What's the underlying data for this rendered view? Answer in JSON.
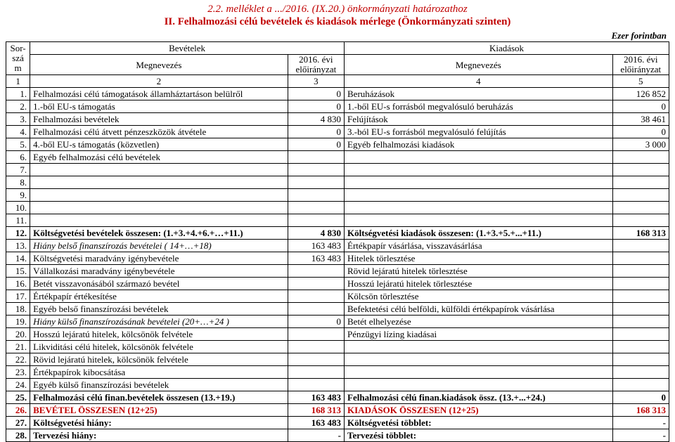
{
  "header": {
    "line1": "2.2. melléklet a .../2016. (IX.20.) önkormányzati határozathoz",
    "line2": "II. Felhalmozási célú bevételek és kiadások mérlege (Önkormányzati szinten)",
    "unit": "Ezer forintban"
  },
  "thead": {
    "sor": "Sor-szá m",
    "bev": "Bevételek",
    "kiad": "Kiadások",
    "megn": "Megnevezés",
    "evi": "2016. évi előirányzat",
    "c1": "1",
    "c2": "2",
    "c3": "3",
    "c4": "4",
    "c5": "5"
  },
  "rows": [
    {
      "n": "1.",
      "m1": "Felhalmozási célú támogatások államháztartáson belülről",
      "v1": "0",
      "m2": "Beruházások",
      "v2": "126 852"
    },
    {
      "n": "2.",
      "m1": "1.-ből EU-s támogatás",
      "v1": "0",
      "m2": "1.-ből EU-s forrásból megvalósuló beruházás",
      "v2": "0"
    },
    {
      "n": "3.",
      "m1": "Felhalmozási bevételek",
      "v1": "4 830",
      "m2": "Felújítások",
      "v2": "38 461"
    },
    {
      "n": "4.",
      "m1": "Felhalmozási célú átvett pénzeszközök átvétele",
      "v1": "0",
      "m2": "3.-ból EU-s forrásból megvalósuló felújítás",
      "v2": "0"
    },
    {
      "n": "5.",
      "m1": "4.-ből EU-s támogatás (közvetlen)",
      "v1": "0",
      "m2": "Egyéb felhalmozási kiadások",
      "v2": "3 000"
    },
    {
      "n": "6.",
      "m1": "Egyéb felhalmozási célú bevételek",
      "v1": "",
      "m2": "",
      "v2": ""
    },
    {
      "n": "7.",
      "m1": "",
      "v1": "",
      "m2": "",
      "v2": ""
    },
    {
      "n": "8.",
      "m1": "",
      "v1": "",
      "m2": "",
      "v2": ""
    },
    {
      "n": "9.",
      "m1": "",
      "v1": "",
      "m2": "",
      "v2": ""
    },
    {
      "n": "10.",
      "m1": "",
      "v1": "",
      "m2": "",
      "v2": ""
    },
    {
      "n": "11.",
      "m1": "",
      "v1": "",
      "m2": "",
      "v2": ""
    },
    {
      "n": "12.",
      "m1": "Költségvetési bevételek összesen: (1.+3.+4.+6.+…+11.)",
      "v1": "4 830",
      "m2": "Költségvetési kiadások összesen: (1.+3.+5.+...+11.)",
      "v2": "168 313",
      "b": true
    },
    {
      "n": "13.",
      "m1": "Hiány belső finanszírozás bevételei ( 14+…+18)",
      "v1": "163 483",
      "m2": "Értékpapír vásárlása, visszavásárlása",
      "v2": "",
      "i1": true
    },
    {
      "n": "14.",
      "m1": "Költségvetési maradvány igénybevétele",
      "v1": "163 483",
      "m2": "Hitelek törlesztése",
      "v2": ""
    },
    {
      "n": "15.",
      "m1": "Vállalkozási maradvány igénybevétele",
      "v1": "",
      "m2": "Rövid lejáratú hitelek törlesztése",
      "v2": ""
    },
    {
      "n": "16.",
      "m1": "Betét visszavonásából származó bevétel",
      "v1": "",
      "m2": "Hosszú lejáratú hitelek törlesztése",
      "v2": ""
    },
    {
      "n": "17.",
      "m1": "Értékpapír értékesítése",
      "v1": "",
      "m2": "Kölcsön törlesztése",
      "v2": ""
    },
    {
      "n": "18.",
      "m1": "Egyéb belső finanszírozási bevételek",
      "v1": "",
      "m2": "Befektetési célú belföldi, külföldi értékpapírok vásárlása",
      "v2": ""
    },
    {
      "n": "19.",
      "m1": "Hiány külső finanszírozásának bevételei (20+…+24 )",
      "v1": "0",
      "m2": "Betét elhelyezése",
      "v2": "",
      "i1": true
    },
    {
      "n": "20.",
      "m1": "Hosszú lejáratú hitelek, kölcsönök felvétele",
      "v1": "",
      "m2": "Pénzügyi lízing kiadásai",
      "v2": ""
    },
    {
      "n": "21.",
      "m1": "Likviditási célú hitelek, kölcsönök felvétele",
      "v1": "",
      "m2": "",
      "v2": ""
    },
    {
      "n": "22.",
      "m1": "Rövid lejáratú hitelek, kölcsönök felvétele",
      "v1": "",
      "m2": "",
      "v2": ""
    },
    {
      "n": "23.",
      "m1": "Értékpapírok kibocsátása",
      "v1": "",
      "m2": "",
      "v2": ""
    },
    {
      "n": "24.",
      "m1": "Egyéb külső finanszírozási bevételek",
      "v1": "",
      "m2": "",
      "v2": ""
    },
    {
      "n": "25.",
      "m1": "Felhalmozási célú finan.bevételek összesen (13.+19.)",
      "v1": "163 483",
      "m2": "Felhalmozási célú finan.kiadások össz. (13.+...+24.)",
      "v2": "0",
      "b": true
    },
    {
      "n": "26.",
      "m1": "BEVÉTEL ÖSSZESEN (12+25)",
      "v1": "168 313",
      "m2": "KIADÁSOK ÖSSZESEN (12+25)",
      "v2": "168 313",
      "b": true,
      "red": true
    },
    {
      "n": "27.",
      "m1": "Költségvetési hiány:",
      "v1": "163 483",
      "m2": "Költségvetési többlet:",
      "v2": "-",
      "b": true
    },
    {
      "n": "28.",
      "m1": "Tervezési hiány:",
      "v1": "-",
      "m2": "Tervezési többlet:",
      "v2": "-",
      "b": true
    }
  ]
}
